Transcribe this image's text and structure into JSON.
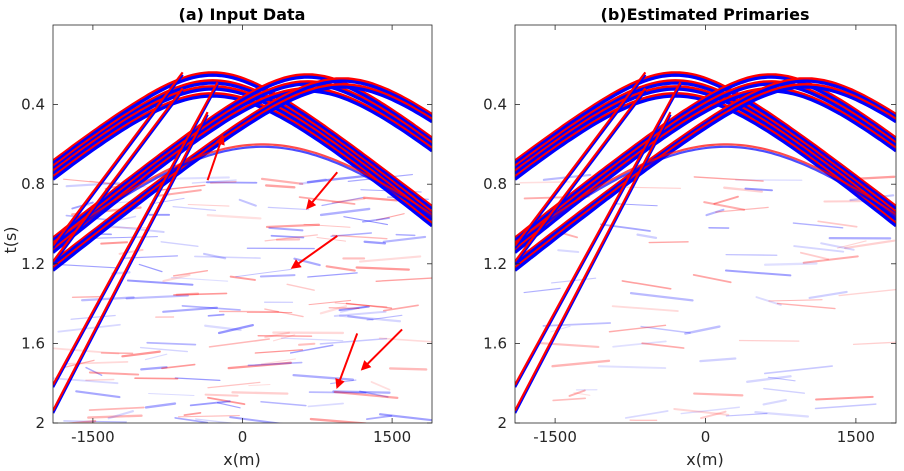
{
  "chart_data": [
    {
      "type": "heatmap",
      "title": "(a) Input Data",
      "xlabel": "x(m)",
      "ylabel": "t(s)",
      "xlim": [
        -1900,
        1900
      ],
      "ylim": [
        0,
        2
      ],
      "y_reversed": true,
      "xticks": [
        -1500,
        0,
        1500
      ],
      "xtick_labels": [
        "-1500",
        "0",
        "1500"
      ],
      "yticks": [
        0.4,
        0.8,
        1.2,
        1.6,
        2
      ],
      "ytick_labels": [
        "0.4",
        "0.8",
        "1.2",
        "1.6",
        "2"
      ],
      "colormap": [
        "#0000ff",
        "#ffffff",
        "#ff0000"
      ],
      "annotations": [
        {
          "type": "arrow",
          "from": [
            -350,
            0.78
          ],
          "to": [
            -200,
            0.56
          ],
          "color": "#ff0000"
        },
        {
          "type": "arrow",
          "from": [
            950,
            0.74
          ],
          "to": [
            650,
            0.92
          ],
          "color": "#ff0000"
        },
        {
          "type": "arrow",
          "from": [
            950,
            1.06
          ],
          "to": [
            500,
            1.22
          ],
          "color": "#ff0000"
        },
        {
          "type": "arrow",
          "from": [
            1150,
            1.55
          ],
          "to": [
            950,
            1.82
          ],
          "color": "#ff0000"
        },
        {
          "type": "arrow",
          "from": [
            1600,
            1.53
          ],
          "to": [
            1200,
            1.73
          ],
          "color": "#ff0000"
        }
      ]
    },
    {
      "type": "heatmap",
      "title": "(b)Estimated Primaries",
      "xlabel": "x(m)",
      "ylabel": "",
      "xlim": [
        -1900,
        1900
      ],
      "ylim": [
        0,
        2
      ],
      "y_reversed": true,
      "xticks": [
        -1500,
        0,
        1500
      ],
      "xtick_labels": [
        "-1500",
        "0",
        "1500"
      ],
      "yticks": [
        0.4,
        0.8,
        1.2,
        1.6,
        2
      ],
      "ytick_labels": [
        "0.4",
        "0.8",
        "1.2",
        "1.6",
        "2"
      ],
      "colormap": [
        "#0000ff",
        "#ffffff",
        "#ff0000"
      ]
    }
  ],
  "colors": {
    "positive": "#ff0000",
    "negative": "#0000ff",
    "background": "#ffffff",
    "axis": "#262626"
  }
}
